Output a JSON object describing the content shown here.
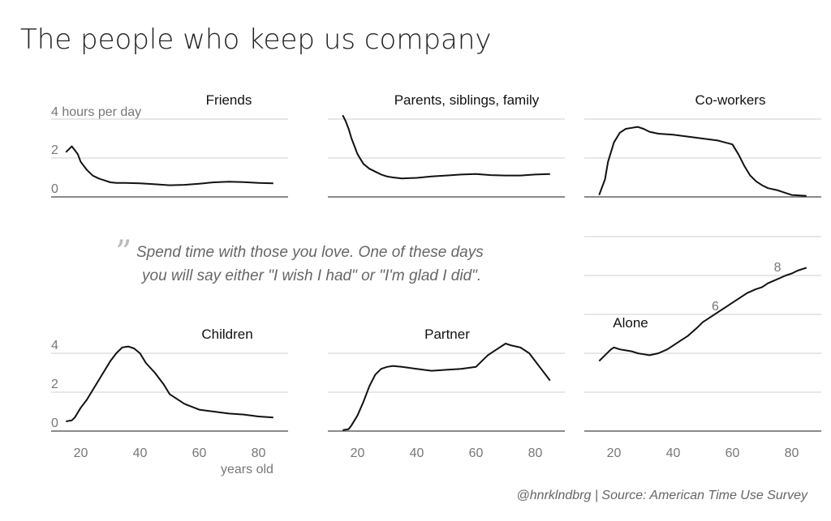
{
  "title": "The people who keep us company",
  "quote": {
    "mark": "”",
    "line1": "Spend time with those you love. One of these days",
    "line2": "you will say either \"I wish I had\" or \"I'm glad I did\"."
  },
  "credit": "@hnrklndbrg | Source: American Time Use Survey",
  "x_axis_label": "years old",
  "y_axis_unit": "4 hours per day",
  "chart_data": [
    {
      "type": "line",
      "title": "Friends",
      "x": [
        15,
        16,
        17,
        18,
        19,
        20,
        22,
        24,
        26,
        28,
        30,
        32,
        35,
        40,
        45,
        50,
        55,
        60,
        65,
        70,
        75,
        80,
        85
      ],
      "y": [
        2.3,
        2.45,
        2.6,
        2.4,
        2.2,
        1.8,
        1.4,
        1.1,
        0.95,
        0.85,
        0.75,
        0.72,
        0.72,
        0.7,
        0.65,
        0.6,
        0.62,
        0.68,
        0.75,
        0.78,
        0.76,
        0.72,
        0.7
      ],
      "xlim": [
        10,
        90
      ],
      "ylim": [
        0,
        4
      ],
      "yticks": [
        {
          "value": 2,
          "label": "2"
        },
        {
          "value": 0,
          "label": "0"
        }
      ]
    },
    {
      "type": "line",
      "title": "Parents, siblings, family",
      "x": [
        15,
        16,
        17,
        18,
        19,
        20,
        22,
        24,
        26,
        28,
        30,
        32,
        35,
        40,
        45,
        50,
        55,
        60,
        65,
        70,
        75,
        80,
        85
      ],
      "y": [
        4.2,
        3.9,
        3.5,
        3.0,
        2.6,
        2.2,
        1.7,
        1.45,
        1.3,
        1.15,
        1.05,
        1.0,
        0.95,
        0.98,
        1.05,
        1.1,
        1.15,
        1.18,
        1.12,
        1.1,
        1.1,
        1.15,
        1.18
      ],
      "xlim": [
        10,
        90
      ],
      "ylim": [
        0,
        4
      ]
    },
    {
      "type": "line",
      "title": "Co-workers",
      "x": [
        15,
        17,
        18,
        20,
        22,
        24,
        26,
        28,
        30,
        32,
        35,
        40,
        45,
        50,
        55,
        60,
        62,
        64,
        66,
        68,
        70,
        72,
        75,
        78,
        80,
        85
      ],
      "y": [
        0.1,
        0.9,
        1.8,
        2.8,
        3.3,
        3.5,
        3.55,
        3.6,
        3.5,
        3.35,
        3.25,
        3.2,
        3.1,
        3.0,
        2.9,
        2.7,
        2.2,
        1.6,
        1.1,
        0.8,
        0.6,
        0.45,
        0.35,
        0.2,
        0.1,
        0.05
      ],
      "xlim": [
        10,
        90
      ],
      "ylim": [
        0,
        4
      ]
    },
    {
      "type": "line",
      "title": "Children",
      "x": [
        15,
        17,
        18,
        20,
        22,
        24,
        26,
        28,
        30,
        32,
        34,
        36,
        38,
        40,
        42,
        45,
        48,
        50,
        55,
        60,
        65,
        70,
        75,
        80,
        85
      ],
      "y": [
        0.5,
        0.55,
        0.7,
        1.2,
        1.6,
        2.1,
        2.6,
        3.1,
        3.6,
        4.0,
        4.3,
        4.35,
        4.25,
        4.0,
        3.5,
        3.0,
        2.4,
        1.9,
        1.4,
        1.1,
        1.0,
        0.9,
        0.85,
        0.75,
        0.7
      ],
      "xlim": [
        10,
        90
      ],
      "ylim": [
        0,
        5
      ],
      "yticks": [
        {
          "value": 4,
          "label": "4"
        },
        {
          "value": 2,
          "label": "2"
        },
        {
          "value": 0,
          "label": "0"
        }
      ]
    },
    {
      "type": "line",
      "title": "Partner",
      "x": [
        15,
        17,
        18,
        20,
        22,
        24,
        26,
        28,
        30,
        32,
        35,
        40,
        45,
        50,
        55,
        60,
        62,
        64,
        66,
        68,
        70,
        72,
        75,
        78,
        80,
        82,
        85
      ],
      "y": [
        0.05,
        0.1,
        0.3,
        0.8,
        1.5,
        2.3,
        2.9,
        3.2,
        3.3,
        3.35,
        3.3,
        3.2,
        3.1,
        3.15,
        3.2,
        3.3,
        3.6,
        3.9,
        4.1,
        4.3,
        4.5,
        4.4,
        4.3,
        4.0,
        3.6,
        3.2,
        2.6
      ],
      "xlim": [
        10,
        90
      ],
      "ylim": [
        0,
        5
      ],
      "xticks": [
        20,
        40,
        60,
        80
      ]
    },
    {
      "type": "line",
      "title": "Alone",
      "x": [
        15,
        17,
        19,
        20,
        22,
        24,
        26,
        28,
        30,
        32,
        35,
        38,
        40,
        42,
        45,
        48,
        50,
        52,
        55,
        58,
        60,
        62,
        65,
        68,
        70,
        72,
        75,
        78,
        80,
        82,
        85
      ],
      "y": [
        3.6,
        3.9,
        4.2,
        4.3,
        4.2,
        4.15,
        4.1,
        4.0,
        3.95,
        3.9,
        4.0,
        4.2,
        4.4,
        4.6,
        4.9,
        5.3,
        5.6,
        5.8,
        6.1,
        6.4,
        6.6,
        6.8,
        7.1,
        7.3,
        7.4,
        7.6,
        7.8,
        8.0,
        8.1,
        8.25,
        8.4
      ],
      "xlim": [
        10,
        90
      ],
      "ylim": [
        0,
        10
      ],
      "yticks": [
        {
          "value": 8,
          "label": "8"
        },
        {
          "value": 6,
          "label": "6"
        }
      ]
    }
  ]
}
